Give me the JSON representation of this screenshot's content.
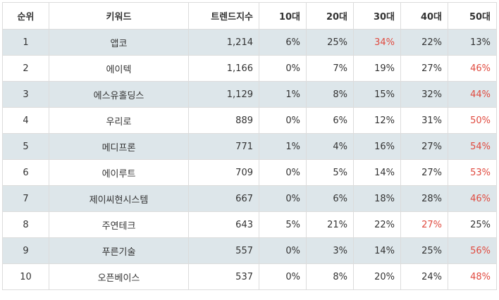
{
  "table": {
    "headers": {
      "rank": "순위",
      "keyword": "키워드",
      "trend": "트렌드지수",
      "age10": "10대",
      "age20": "20대",
      "age30": "30대",
      "age40": "40대",
      "age50": "50대"
    },
    "highlight_color": "#e04a3f",
    "stripe_color": "#dde6ea",
    "rows": [
      {
        "rank": "1",
        "keyword": "앱코",
        "trend": "1,214",
        "age10": "6%",
        "age20": "25%",
        "age30": "34%",
        "age40": "22%",
        "age50": "13%",
        "highlight": "age30"
      },
      {
        "rank": "2",
        "keyword": "에이텍",
        "trend": "1,166",
        "age10": "0%",
        "age20": "7%",
        "age30": "19%",
        "age40": "27%",
        "age50": "46%",
        "highlight": "age50"
      },
      {
        "rank": "3",
        "keyword": "에스유홀딩스",
        "trend": "1,129",
        "age10": "1%",
        "age20": "8%",
        "age30": "15%",
        "age40": "32%",
        "age50": "44%",
        "highlight": "age50"
      },
      {
        "rank": "4",
        "keyword": "우리로",
        "trend": "889",
        "age10": "0%",
        "age20": "6%",
        "age30": "12%",
        "age40": "31%",
        "age50": "50%",
        "highlight": "age50"
      },
      {
        "rank": "5",
        "keyword": "메디프론",
        "trend": "771",
        "age10": "1%",
        "age20": "4%",
        "age30": "16%",
        "age40": "27%",
        "age50": "54%",
        "highlight": "age50"
      },
      {
        "rank": "6",
        "keyword": "에이루트",
        "trend": "709",
        "age10": "0%",
        "age20": "5%",
        "age30": "14%",
        "age40": "27%",
        "age50": "53%",
        "highlight": "age50"
      },
      {
        "rank": "7",
        "keyword": "제이씨현시스템",
        "trend": "667",
        "age10": "0%",
        "age20": "6%",
        "age30": "18%",
        "age40": "28%",
        "age50": "46%",
        "highlight": "age50"
      },
      {
        "rank": "8",
        "keyword": "주연테크",
        "trend": "643",
        "age10": "5%",
        "age20": "21%",
        "age30": "22%",
        "age40": "27%",
        "age50": "25%",
        "highlight": "age40"
      },
      {
        "rank": "9",
        "keyword": "푸른기술",
        "trend": "557",
        "age10": "0%",
        "age20": "3%",
        "age30": "14%",
        "age40": "25%",
        "age50": "56%",
        "highlight": "age50"
      },
      {
        "rank": "10",
        "keyword": "오픈베이스",
        "trend": "537",
        "age10": "0%",
        "age20": "8%",
        "age30": "20%",
        "age40": "24%",
        "age50": "48%",
        "highlight": "age50"
      }
    ]
  }
}
